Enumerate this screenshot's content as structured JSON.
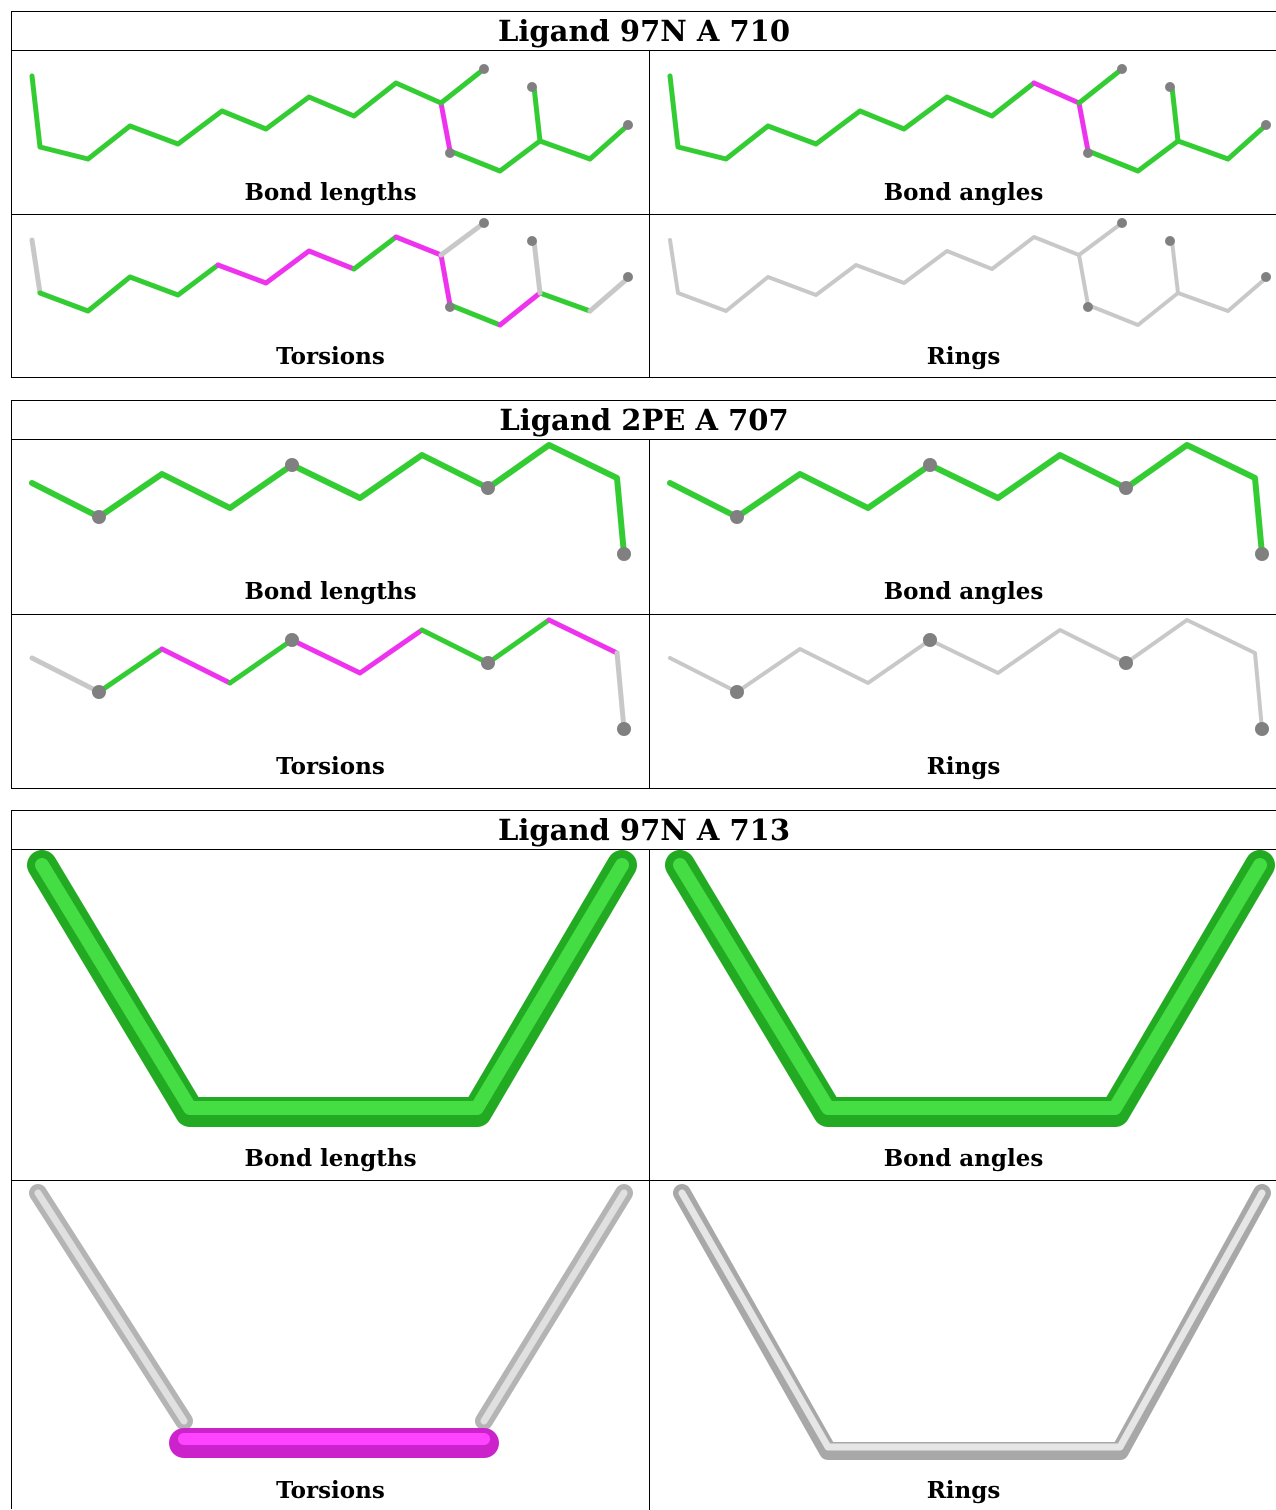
{
  "ligands": [
    {
      "title": "Ligand 97N A 710",
      "panels": [
        {
          "caption": "Bond lengths",
          "view": "bond-lengths"
        },
        {
          "caption": "Bond angles",
          "view": "bond-angles"
        },
        {
          "caption": "Torsions",
          "view": "torsions"
        },
        {
          "caption": "Rings",
          "view": "rings"
        }
      ]
    },
    {
      "title": "Ligand 2PE A 707",
      "panels": [
        {
          "caption": "Bond lengths",
          "view": "bond-lengths"
        },
        {
          "caption": "Bond angles",
          "view": "bond-angles"
        },
        {
          "caption": "Torsions",
          "view": "torsions"
        },
        {
          "caption": "Rings",
          "view": "rings"
        }
      ]
    },
    {
      "title": "Ligand 97N A 713",
      "panels": [
        {
          "caption": "Bond lengths",
          "view": "bond-lengths"
        },
        {
          "caption": "Bond angles",
          "view": "bond-angles"
        },
        {
          "caption": "Torsions",
          "view": "torsions"
        },
        {
          "caption": "Rings",
          "view": "rings"
        }
      ]
    }
  ],
  "colors": {
    "ok": "#33cc33",
    "outlier": "#ee33ee",
    "none": "#c8c8c8",
    "atom": "#808080"
  }
}
